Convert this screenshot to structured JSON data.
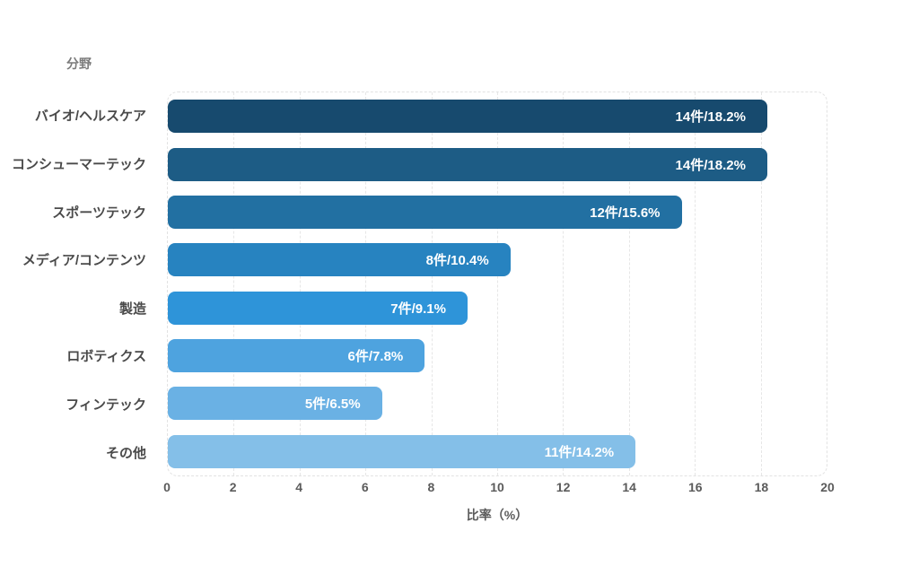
{
  "chart_data": {
    "type": "bar",
    "orientation": "horizontal",
    "ylabel": "分野",
    "xlabel": "比率（%）",
    "categories": [
      "バイオ/ヘルスケア",
      "コンシューマーテック",
      "スポーツテック",
      "メディア/コンテンツ",
      "製造",
      "ロボティクス",
      "フィンテック",
      "その他"
    ],
    "counts": [
      14,
      14,
      12,
      8,
      7,
      6,
      5,
      11
    ],
    "values_pct": [
      18.2,
      18.2,
      15.6,
      10.4,
      9.1,
      7.8,
      6.5,
      14.2
    ],
    "bar_labels": [
      "14件/18.2%",
      "14件/18.2%",
      "12件/15.6%",
      "8件/10.4%",
      "7件/9.1%",
      "6件/7.8%",
      "5件/6.5%",
      "11件/14.2%"
    ],
    "bar_colors": [
      "#174A6E",
      "#1D5C85",
      "#2270A2",
      "#2783C0",
      "#2E94D9",
      "#4EA3DF",
      "#6AB1E4",
      "#84BFE8"
    ],
    "xlim": [
      0,
      20
    ],
    "x_ticks": [
      0,
      2,
      4,
      6,
      8,
      10,
      12,
      14,
      16,
      18,
      20
    ],
    "grid": "vertical-dashed",
    "background": "#ffffff"
  }
}
